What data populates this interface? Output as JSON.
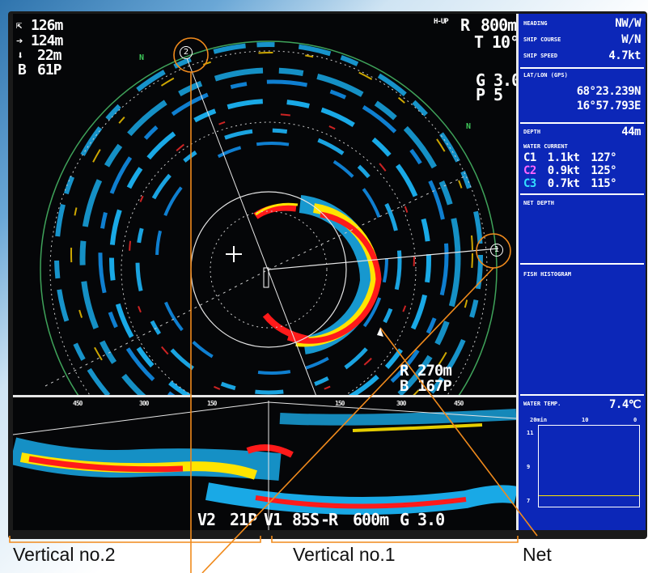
{
  "sonar": {
    "top_left": {
      "line1": "126m",
      "line2": "124m",
      "line3": "22m",
      "line4_label": "B",
      "line4_value": "61P"
    },
    "mode": "H-UP",
    "range_label": "R",
    "range_value": "800m",
    "tilt_label": "T",
    "tilt_value": "10°",
    "gain_label": "G",
    "gain_value": "3.0",
    "pulse_label": "P",
    "pulse_value": "5",
    "north_marker": "N",
    "cursor_range_label": "R",
    "cursor_range_value": "270m",
    "cursor_bearing_label": "B",
    "cursor_bearing_value": "167P",
    "marker_1": "1",
    "marker_2": "2"
  },
  "vertical": {
    "scale_left": [
      "450",
      "300",
      "150"
    ],
    "scale_right": [
      "150",
      "300",
      "450"
    ],
    "status": {
      "v2_label": "V2",
      "v2_value": "21P",
      "v1_label": "V1",
      "v1_value": "85S",
      "v1_suffix": "R",
      "v1_range": "600m",
      "v1_gain_label": "G",
      "v1_gain_value": "3.0"
    }
  },
  "panel": {
    "heading_label": "HEADING",
    "heading_value": "NW/W",
    "course_label": "SHIP COURSE",
    "course_value": "W/N",
    "speed_label": "SHIP SPEED",
    "speed_value": "4.7kt",
    "latlon_label": "LAT/LON (GPS)",
    "lat_value": "68°23.239N",
    "lon_value": "16°57.793E",
    "depth_label": "DEPTH",
    "depth_value": "44m",
    "current_label": "WATER CURRENT",
    "currents": [
      {
        "name": "C1",
        "speed": "1.1kt",
        "dir": "127°",
        "color": "#ffffff"
      },
      {
        "name": "C2",
        "speed": "0.9kt",
        "dir": "125°",
        "color": "#ff66ff"
      },
      {
        "name": "C3",
        "speed": "0.7kt",
        "dir": "115°",
        "color": "#33e0ff"
      }
    ],
    "net_depth_label": "NET DEPTH",
    "histogram_label": "FISH HISTOGRAM",
    "temp_label": "WATER TEMP.",
    "temp_value": "7.4℃",
    "temp_axis_top": [
      "20min",
      "10",
      "0"
    ],
    "temp_axis_left": [
      "11",
      "9",
      "7"
    ]
  },
  "captions": {
    "vertical_2": "Vertical no.2",
    "vertical_1": "Vertical no.1",
    "net": "Net"
  },
  "colors": {
    "panel_blue": "#0c27b8",
    "annotation_orange": "#f08a1c",
    "echo_red": "#ff1a1a",
    "echo_yellow": "#ffe400",
    "echo_cyan": "#19a9e6"
  }
}
